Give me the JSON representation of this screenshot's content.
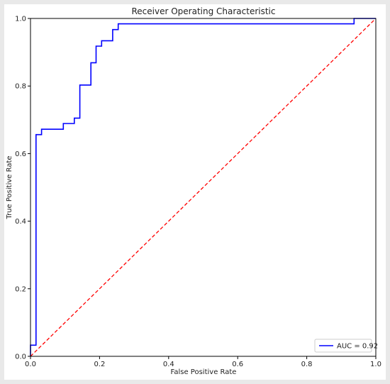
{
  "chart_data": {
    "type": "line",
    "title": "Receiver Operating Characteristic",
    "xlabel": "False Positive Rate",
    "ylabel": "True Positive Rate",
    "xlim": [
      0.0,
      1.0
    ],
    "ylim": [
      0.0,
      1.0
    ],
    "xticks": [
      "0.0",
      "0.2",
      "0.4",
      "0.6",
      "0.8",
      "1.0"
    ],
    "yticks": [
      "0.0",
      "0.2",
      "0.4",
      "0.6",
      "0.8",
      "1.0"
    ],
    "grid": false,
    "legend_position": "bottom-right",
    "series": [
      {
        "name": "AUC = 0.92",
        "color": "#0000ff",
        "style": "solid",
        "x": [
          0.0,
          0.0,
          0.016,
          0.016,
          0.032,
          0.032,
          0.095,
          0.095,
          0.127,
          0.127,
          0.143,
          0.143,
          0.175,
          0.175,
          0.19,
          0.19,
          0.206,
          0.206,
          0.238,
          0.238,
          0.254,
          0.254,
          0.937,
          0.937,
          1.0
        ],
        "y": [
          0.0,
          0.033,
          0.033,
          0.656,
          0.656,
          0.672,
          0.672,
          0.689,
          0.689,
          0.705,
          0.705,
          0.803,
          0.803,
          0.869,
          0.869,
          0.918,
          0.918,
          0.934,
          0.934,
          0.967,
          0.967,
          0.984,
          0.984,
          1.0,
          1.0
        ]
      },
      {
        "name": "",
        "color": "#ff0000",
        "style": "dashed",
        "x": [
          0.0,
          1.0
        ],
        "y": [
          0.0,
          1.0
        ]
      }
    ]
  }
}
